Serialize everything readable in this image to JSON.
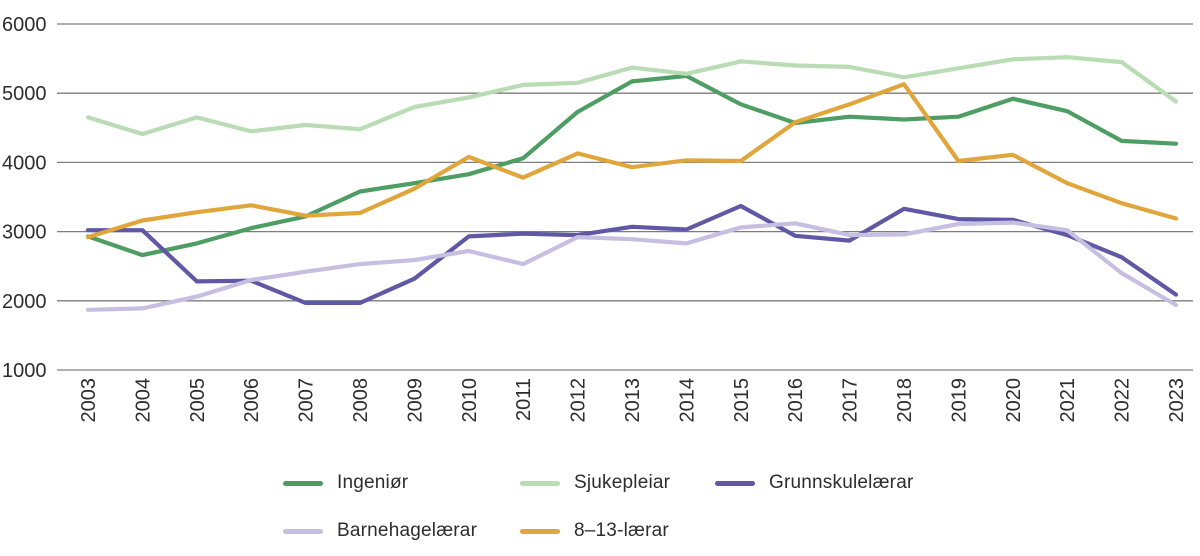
{
  "chart_data": {
    "type": "line",
    "title": "",
    "xlabel": "",
    "ylabel": "",
    "x": [
      2003,
      2004,
      2005,
      2006,
      2007,
      2008,
      2009,
      2010,
      2011,
      2012,
      2013,
      2014,
      2015,
      2016,
      2017,
      2018,
      2019,
      2020,
      2021,
      2022,
      2023
    ],
    "series": [
      {
        "name": "Ingeniør",
        "color": "#4e9d63",
        "values": [
          2930,
          2660,
          2830,
          3050,
          3220,
          3580,
          3700,
          3830,
          4060,
          4730,
          5170,
          5250,
          4840,
          4570,
          4660,
          4620,
          4660,
          4920,
          4740,
          4310,
          4270
        ]
      },
      {
        "name": "Sjukepleiar",
        "color": "#b9dcb4",
        "values": [
          4650,
          4410,
          4650,
          4450,
          4540,
          4480,
          4800,
          4940,
          5120,
          5150,
          5370,
          5280,
          5460,
          5400,
          5380,
          5230,
          5360,
          5490,
          5520,
          5450,
          4880
        ]
      },
      {
        "name": "Grunnskulelærar",
        "color": "#5f58a5",
        "values": [
          3020,
          3020,
          2280,
          2290,
          1970,
          1970,
          2320,
          2930,
          2970,
          2950,
          3070,
          3030,
          3370,
          2940,
          2870,
          3330,
          3180,
          3170,
          2950,
          2630,
          2090
        ]
      },
      {
        "name": "Barnehagelærar",
        "color": "#c6bfe2",
        "values": [
          1870,
          1890,
          2060,
          2300,
          2420,
          2530,
          2590,
          2720,
          2530,
          2920,
          2890,
          2830,
          3060,
          3120,
          2950,
          2960,
          3110,
          3130,
          3020,
          2400,
          1940
        ]
      },
      {
        "name": "8–13-lærar",
        "color": "#e0a63c",
        "values": [
          2920,
          3160,
          3280,
          3380,
          3230,
          3270,
          3620,
          4080,
          3780,
          4130,
          3930,
          4030,
          4020,
          4580,
          4840,
          5130,
          4020,
          4110,
          3700,
          3410,
          3190
        ]
      }
    ],
    "y_ticks": [
      6000,
      5000,
      4000,
      3000,
      2000,
      1000
    ],
    "ylim": [
      1000,
      6000
    ],
    "grid": "horizontal-only",
    "legend_position": "bottom",
    "legend_rows": [
      [
        "Ingeniør",
        "Sjukepleiar",
        "Grunnskulelærar"
      ],
      [
        "Barnehagelærar",
        "8–13-lærar"
      ]
    ]
  },
  "colors": {
    "grid": "#7d7d7d",
    "text": "#2d2d2d",
    "background": "#ffffff"
  }
}
